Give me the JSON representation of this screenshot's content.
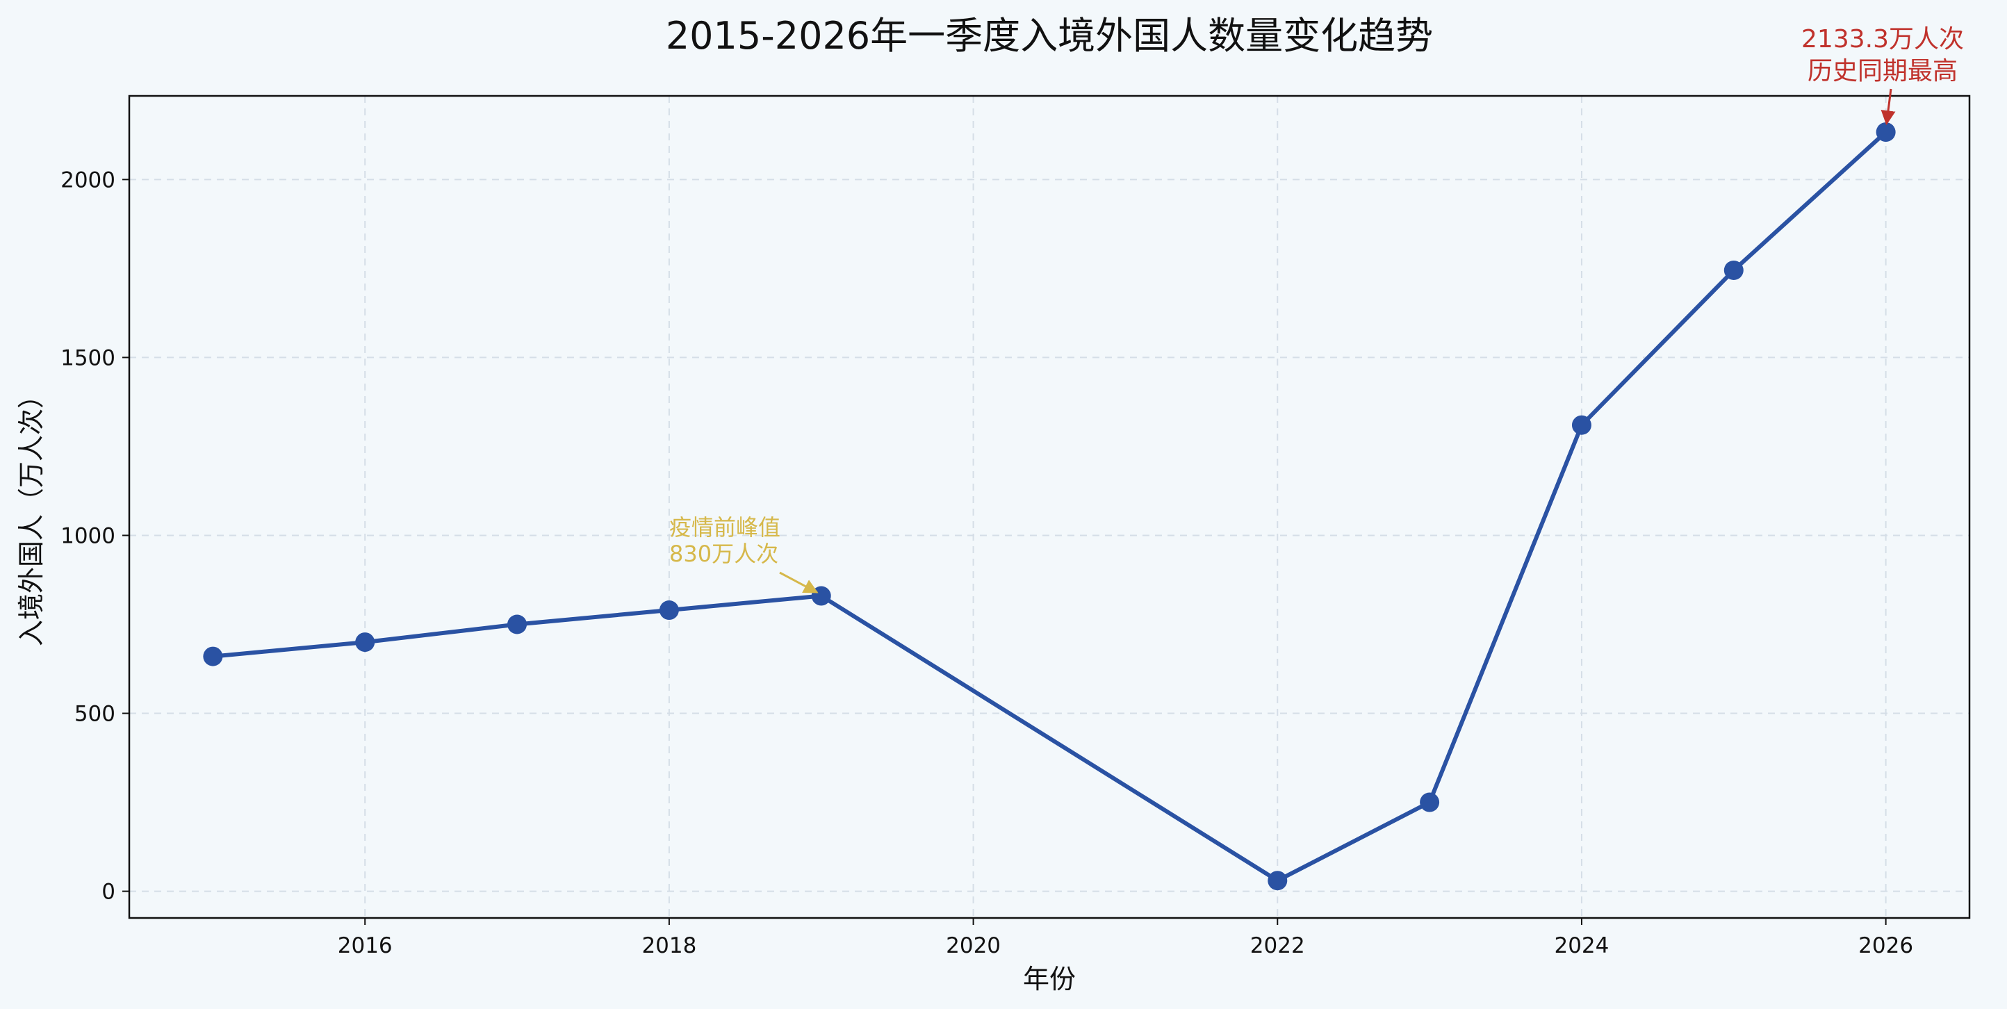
{
  "chart_data": {
    "type": "line",
    "title": "2015-2026年一季度入境外国人数量变化趋势",
    "xlabel": "年份",
    "ylabel": "入境外国人（万人次）",
    "xlim": [
      2014.45,
      2026.55
    ],
    "ylim": [
      -75,
      2235
    ],
    "x_ticks": [
      2016,
      2018,
      2020,
      2022,
      2024,
      2026
    ],
    "y_ticks": [
      0,
      500,
      1000,
      1500,
      2000
    ],
    "grid": true,
    "x": [
      2015,
      2016,
      2017,
      2018,
      2019,
      2022,
      2023,
      2024,
      2025,
      2026
    ],
    "series": [
      {
        "values": [
          660,
          700,
          750,
          790,
          830,
          30,
          250,
          1310,
          1745,
          2133.3
        ]
      }
    ],
    "annotations": [
      {
        "lines": [
          "疫情前峰值",
          "830万人次"
        ],
        "x": 2019,
        "y": 830
      },
      {
        "lines": [
          "2133.3万人次",
          "历史同期最高"
        ],
        "x": 2026,
        "y": 2133.3
      }
    ]
  },
  "colors": {
    "background": "#f3f8fb",
    "line": "#2a52a3",
    "annotation_peak": "#d6b84a",
    "annotation_max": "#c0322c",
    "grid": "#d5dee7"
  }
}
